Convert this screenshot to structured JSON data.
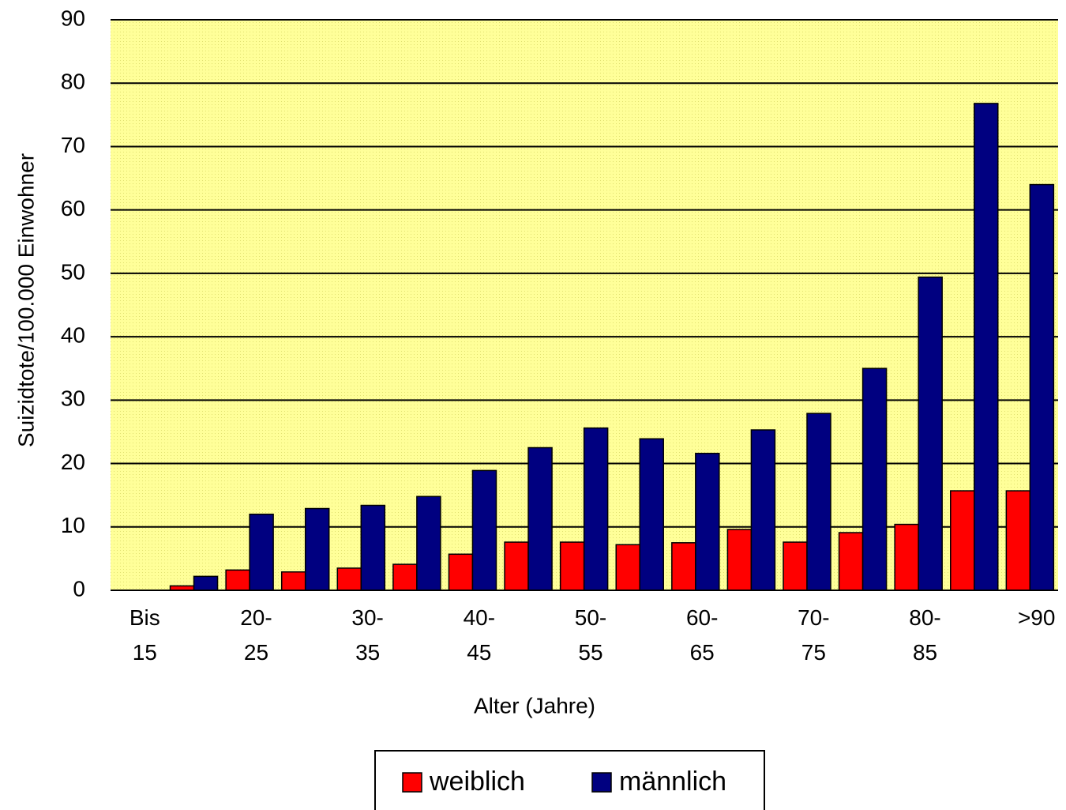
{
  "chart_data": {
    "type": "bar",
    "y_label": "Suizidtote/100.000 Einwohner",
    "x_label": "Alter (Jahre)",
    "categories": [
      "Bis 15",
      null,
      "20-25",
      null,
      "30-35",
      null,
      "40-45",
      null,
      "50-55",
      null,
      "60-65",
      null,
      "70-75",
      null,
      "80-85",
      null,
      ">90"
    ],
    "series": [
      {
        "name": "weiblich",
        "color": "#ff0000",
        "values": [
          0,
          0.7,
          3.2,
          2.9,
          3.5,
          4.1,
          5.7,
          7.6,
          7.6,
          7.2,
          7.5,
          9.6,
          7.6,
          9.1,
          10.4,
          15.7,
          15.7
        ]
      },
      {
        "name": "männlich",
        "color": "#000080",
        "values": [
          0,
          2.2,
          12.0,
          12.9,
          13.4,
          14.8,
          18.9,
          22.5,
          25.6,
          23.9,
          21.6,
          25.3,
          27.9,
          35.0,
          49.4,
          76.8,
          64.0
        ]
      }
    ],
    "ylim": [
      0,
      90
    ],
    "yticks": [
      0,
      10,
      20,
      30,
      40,
      50,
      60,
      70,
      80,
      90
    ],
    "grid": true,
    "legend": "bottom"
  }
}
